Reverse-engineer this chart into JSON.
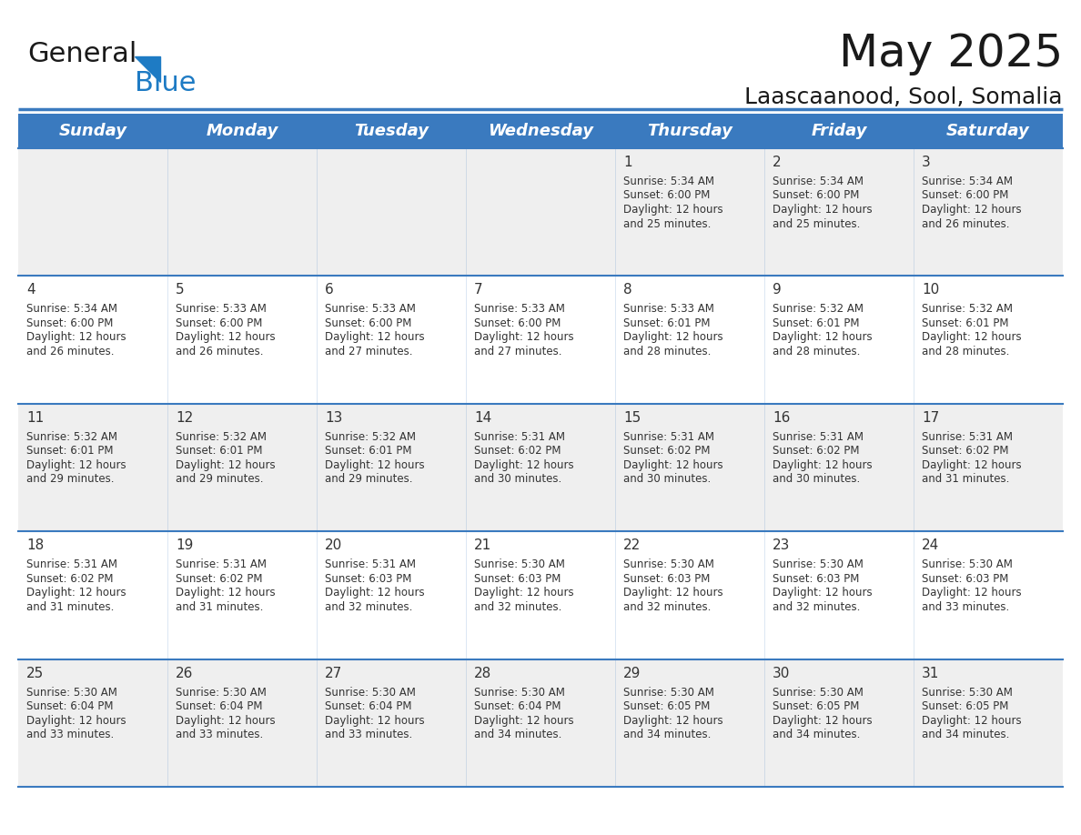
{
  "title": "May 2025",
  "subtitle": "Laascaanood, Sool, Somalia",
  "header_color": "#3a7abf",
  "header_text_color": "#ffffff",
  "row_colors": [
    "#efefef",
    "#ffffff",
    "#efefef",
    "#ffffff",
    "#efefef"
  ],
  "text_color": "#333333",
  "day_names": [
    "Sunday",
    "Monday",
    "Tuesday",
    "Wednesday",
    "Thursday",
    "Friday",
    "Saturday"
  ],
  "weeks": [
    [
      {
        "day": "",
        "sunrise": "",
        "sunset": "",
        "daylight": ""
      },
      {
        "day": "",
        "sunrise": "",
        "sunset": "",
        "daylight": ""
      },
      {
        "day": "",
        "sunrise": "",
        "sunset": "",
        "daylight": ""
      },
      {
        "day": "",
        "sunrise": "",
        "sunset": "",
        "daylight": ""
      },
      {
        "day": "1",
        "sunrise": "5:34 AM",
        "sunset": "6:00 PM",
        "daylight": "12 hours and 25 minutes."
      },
      {
        "day": "2",
        "sunrise": "5:34 AM",
        "sunset": "6:00 PM",
        "daylight": "12 hours and 25 minutes."
      },
      {
        "day": "3",
        "sunrise": "5:34 AM",
        "sunset": "6:00 PM",
        "daylight": "12 hours and 26 minutes."
      }
    ],
    [
      {
        "day": "4",
        "sunrise": "5:34 AM",
        "sunset": "6:00 PM",
        "daylight": "12 hours and 26 minutes."
      },
      {
        "day": "5",
        "sunrise": "5:33 AM",
        "sunset": "6:00 PM",
        "daylight": "12 hours and 26 minutes."
      },
      {
        "day": "6",
        "sunrise": "5:33 AM",
        "sunset": "6:00 PM",
        "daylight": "12 hours and 27 minutes."
      },
      {
        "day": "7",
        "sunrise": "5:33 AM",
        "sunset": "6:00 PM",
        "daylight": "12 hours and 27 minutes."
      },
      {
        "day": "8",
        "sunrise": "5:33 AM",
        "sunset": "6:01 PM",
        "daylight": "12 hours and 28 minutes."
      },
      {
        "day": "9",
        "sunrise": "5:32 AM",
        "sunset": "6:01 PM",
        "daylight": "12 hours and 28 minutes."
      },
      {
        "day": "10",
        "sunrise": "5:32 AM",
        "sunset": "6:01 PM",
        "daylight": "12 hours and 28 minutes."
      }
    ],
    [
      {
        "day": "11",
        "sunrise": "5:32 AM",
        "sunset": "6:01 PM",
        "daylight": "12 hours and 29 minutes."
      },
      {
        "day": "12",
        "sunrise": "5:32 AM",
        "sunset": "6:01 PM",
        "daylight": "12 hours and 29 minutes."
      },
      {
        "day": "13",
        "sunrise": "5:32 AM",
        "sunset": "6:01 PM",
        "daylight": "12 hours and 29 minutes."
      },
      {
        "day": "14",
        "sunrise": "5:31 AM",
        "sunset": "6:02 PM",
        "daylight": "12 hours and 30 minutes."
      },
      {
        "day": "15",
        "sunrise": "5:31 AM",
        "sunset": "6:02 PM",
        "daylight": "12 hours and 30 minutes."
      },
      {
        "day": "16",
        "sunrise": "5:31 AM",
        "sunset": "6:02 PM",
        "daylight": "12 hours and 30 minutes."
      },
      {
        "day": "17",
        "sunrise": "5:31 AM",
        "sunset": "6:02 PM",
        "daylight": "12 hours and 31 minutes."
      }
    ],
    [
      {
        "day": "18",
        "sunrise": "5:31 AM",
        "sunset": "6:02 PM",
        "daylight": "12 hours and 31 minutes."
      },
      {
        "day": "19",
        "sunrise": "5:31 AM",
        "sunset": "6:02 PM",
        "daylight": "12 hours and 31 minutes."
      },
      {
        "day": "20",
        "sunrise": "5:31 AM",
        "sunset": "6:03 PM",
        "daylight": "12 hours and 32 minutes."
      },
      {
        "day": "21",
        "sunrise": "5:30 AM",
        "sunset": "6:03 PM",
        "daylight": "12 hours and 32 minutes."
      },
      {
        "day": "22",
        "sunrise": "5:30 AM",
        "sunset": "6:03 PM",
        "daylight": "12 hours and 32 minutes."
      },
      {
        "day": "23",
        "sunrise": "5:30 AM",
        "sunset": "6:03 PM",
        "daylight": "12 hours and 32 minutes."
      },
      {
        "day": "24",
        "sunrise": "5:30 AM",
        "sunset": "6:03 PM",
        "daylight": "12 hours and 33 minutes."
      }
    ],
    [
      {
        "day": "25",
        "sunrise": "5:30 AM",
        "sunset": "6:04 PM",
        "daylight": "12 hours and 33 minutes."
      },
      {
        "day": "26",
        "sunrise": "5:30 AM",
        "sunset": "6:04 PM",
        "daylight": "12 hours and 33 minutes."
      },
      {
        "day": "27",
        "sunrise": "5:30 AM",
        "sunset": "6:04 PM",
        "daylight": "12 hours and 33 minutes."
      },
      {
        "day": "28",
        "sunrise": "5:30 AM",
        "sunset": "6:04 PM",
        "daylight": "12 hours and 34 minutes."
      },
      {
        "day": "29",
        "sunrise": "5:30 AM",
        "sunset": "6:05 PM",
        "daylight": "12 hours and 34 minutes."
      },
      {
        "day": "30",
        "sunrise": "5:30 AM",
        "sunset": "6:05 PM",
        "daylight": "12 hours and 34 minutes."
      },
      {
        "day": "31",
        "sunrise": "5:30 AM",
        "sunset": "6:05 PM",
        "daylight": "12 hours and 34 minutes."
      }
    ]
  ],
  "logo_color_general": "#1a1a1a",
  "logo_color_blue": "#1e7bc4",
  "logo_triangle_color": "#1e7bc4",
  "border_color": "#3a7abf",
  "title_fontsize": 36,
  "subtitle_fontsize": 18,
  "header_fontsize": 13,
  "day_num_fontsize": 11,
  "cell_text_fontsize": 8.5
}
